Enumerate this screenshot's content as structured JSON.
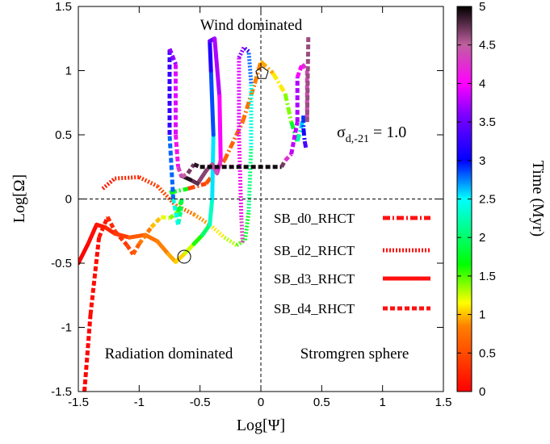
{
  "chart_data": {
    "type": "line",
    "xlabel": "Log[Ψ]",
    "ylabel": "Log[Ω]",
    "xlim": [
      -1.5,
      1.5
    ],
    "ylim": [
      -1.5,
      1.5
    ],
    "xticks": [
      "-1.5",
      "-1",
      "-0.5",
      "0",
      "0.5",
      "1",
      "1.5"
    ],
    "yticks": [
      "-1.5",
      "-1",
      "-0.5",
      "0",
      "0.5",
      "1",
      "1.5"
    ],
    "colorbar": {
      "label": "Time (Myr)",
      "range": [
        0,
        5
      ],
      "ticks": [
        "0",
        "0.5",
        "1",
        "1.5",
        "2",
        "2.5",
        "3",
        "3.5",
        "4",
        "4.5",
        "5"
      ]
    },
    "reference_lines": {
      "x": 0,
      "y": 0
    },
    "annotations": {
      "top": "Wind dominated",
      "bottom_left": "Radiation dominated",
      "bottom_right": "Stromgren sphere",
      "sigma_base": "σ",
      "sigma_sub": "d,-21",
      "sigma_value": " = 1.0"
    },
    "legend_position": "right-center",
    "series": [
      {
        "name": "SB_d0_RHCT",
        "style": "dashdot",
        "points": [
          [
            -0.75,
            0.05,
            3.0
          ],
          [
            -0.6,
            0.08,
            0.4
          ],
          [
            -0.45,
            0.12,
            0.5
          ],
          [
            -0.3,
            0.3,
            0.6
          ],
          [
            -0.15,
            0.6,
            0.7
          ],
          [
            -0.05,
            0.9,
            0.8
          ],
          [
            0.0,
            1.07,
            0.9
          ],
          [
            0.1,
            0.98,
            1.0
          ],
          [
            0.2,
            0.82,
            1.2
          ],
          [
            0.25,
            0.6,
            1.6
          ],
          [
            0.3,
            0.45,
            2.0
          ],
          [
            0.33,
            0.55,
            2.4
          ],
          [
            0.35,
            0.65,
            2.8
          ],
          [
            0.35,
            0.55,
            3.0
          ],
          [
            0.36,
            0.45,
            3.2
          ],
          [
            0.37,
            0.4,
            3.5
          ]
        ]
      },
      {
        "name": "SB_d2_RHCT",
        "style": "dotted",
        "points": [
          [
            -1.3,
            0.08,
            0.1
          ],
          [
            -1.2,
            0.16,
            0.2
          ],
          [
            -1.0,
            0.17,
            0.3
          ],
          [
            -0.85,
            0.1,
            0.4
          ],
          [
            -0.7,
            -0.05,
            0.6
          ],
          [
            -0.55,
            -0.12,
            0.8
          ],
          [
            -0.42,
            -0.2,
            1.0
          ],
          [
            -0.3,
            -0.3,
            1.2
          ],
          [
            -0.2,
            -0.36,
            1.4
          ],
          [
            -0.13,
            -0.32,
            1.6
          ],
          [
            -0.1,
            -0.1,
            1.9
          ],
          [
            -0.08,
            0.4,
            2.2
          ],
          [
            -0.08,
            0.9,
            2.6
          ],
          [
            -0.1,
            1.15,
            3.0
          ],
          [
            -0.14,
            1.18,
            3.5
          ],
          [
            -0.18,
            1.1,
            3.8
          ],
          [
            -0.18,
            0.5,
            4.0
          ],
          [
            -0.16,
            -0.15,
            4.2
          ],
          [
            -0.15,
            -0.35,
            4.4
          ]
        ]
      },
      {
        "name": "SB_d3_RHCT",
        "style": "solid",
        "points": [
          [
            -1.5,
            -0.5,
            0.0
          ],
          [
            -1.42,
            -0.35,
            0.05
          ],
          [
            -1.35,
            -0.2,
            0.1
          ],
          [
            -1.28,
            -0.22,
            0.2
          ],
          [
            -1.2,
            -0.27,
            0.3
          ],
          [
            -1.08,
            -0.3,
            0.5
          ],
          [
            -0.95,
            -0.28,
            0.7
          ],
          [
            -0.85,
            -0.33,
            0.8
          ],
          [
            -0.76,
            -0.43,
            0.9
          ],
          [
            -0.7,
            -0.49,
            1.0
          ],
          [
            -0.62,
            -0.42,
            1.1
          ],
          [
            -0.55,
            -0.35,
            1.4
          ],
          [
            -0.48,
            -0.28,
            1.8
          ],
          [
            -0.42,
            -0.2,
            2.2
          ],
          [
            -0.4,
            0.0,
            2.4
          ],
          [
            -0.39,
            0.5,
            2.7
          ],
          [
            -0.41,
            1.0,
            3.0
          ],
          [
            -0.42,
            1.23,
            3.3
          ],
          [
            -0.38,
            1.25,
            3.6
          ],
          [
            -0.34,
            0.8,
            3.9
          ],
          [
            -0.33,
            0.3,
            4.1
          ],
          [
            -0.36,
            0.2,
            4.3
          ],
          [
            -0.4,
            0.27,
            4.5
          ],
          [
            -0.45,
            0.22,
            4.6
          ],
          [
            -0.52,
            0.12,
            4.7
          ],
          [
            -0.58,
            0.15,
            4.8
          ],
          [
            -0.65,
            0.18,
            5.0
          ]
        ]
      },
      {
        "name": "SB_d4_RHCT",
        "style": "dashed",
        "points": [
          [
            -1.45,
            -1.5,
            0.0
          ],
          [
            -1.4,
            -0.9,
            0.05
          ],
          [
            -1.33,
            -0.3,
            0.1
          ],
          [
            -1.26,
            -0.14,
            0.2
          ],
          [
            -1.2,
            -0.25,
            0.3
          ],
          [
            -1.1,
            -0.36,
            0.4
          ],
          [
            -1.05,
            -0.43,
            0.5
          ],
          [
            -1.0,
            -0.35,
            0.7
          ],
          [
            -0.9,
            -0.22,
            0.9
          ],
          [
            -0.82,
            -0.14,
            1.1
          ],
          [
            -0.75,
            -0.15,
            1.3
          ],
          [
            -0.68,
            -0.1,
            1.5
          ],
          [
            -0.65,
            0.0,
            1.8
          ],
          [
            -0.66,
            -0.1,
            2.0
          ],
          [
            -0.68,
            -0.2,
            2.2
          ],
          [
            -0.72,
            0.0,
            2.6
          ],
          [
            -0.75,
            0.5,
            3.0
          ],
          [
            -0.75,
            1.17,
            3.5
          ],
          [
            -0.7,
            1.05,
            3.8
          ],
          [
            -0.7,
            0.5,
            4.0
          ],
          [
            -0.68,
            0.25,
            4.2
          ],
          [
            -0.65,
            0.17,
            4.4
          ],
          [
            -0.6,
            0.2,
            4.6
          ],
          [
            -0.55,
            0.27,
            4.8
          ],
          [
            -0.5,
            0.25,
            5.0
          ],
          [
            0.17,
            0.25,
            4.9
          ],
          [
            0.2,
            0.3,
            4.5
          ],
          [
            0.25,
            0.35,
            4.0
          ],
          [
            0.3,
            0.6,
            3.6
          ],
          [
            0.3,
            0.95,
            3.9
          ],
          [
            0.34,
            1.05,
            4.1
          ],
          [
            0.38,
            1.0,
            4.3
          ],
          [
            0.38,
            0.6,
            4.5
          ],
          [
            0.39,
            1.27,
            4.7
          ]
        ]
      }
    ],
    "markers": [
      {
        "shape": "circle",
        "x": -0.63,
        "y": -0.45
      },
      {
        "shape": "pentagon",
        "x": 0.01,
        "y": 0.98
      }
    ]
  }
}
